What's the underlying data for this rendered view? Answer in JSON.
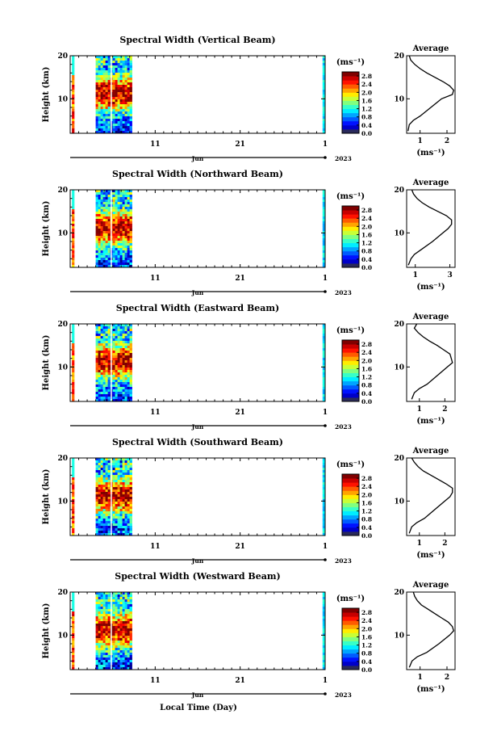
{
  "chart_data": {
    "type": "heatmap",
    "x_axis_label": "Local Time (Day)",
    "month_label": "Jun",
    "year_label": "2023",
    "x_ticks": [
      "11",
      "21",
      "1"
    ],
    "y_label": "Height (km)",
    "y_ticks": [
      "20",
      "10"
    ],
    "ylim_km": [
      2,
      20
    ],
    "time_range_days": [
      1,
      31
    ],
    "data_block_days": [
      4.0,
      8.2
    ],
    "edge_strips_days": [
      [
        1.2,
        1.5
      ],
      [
        30.7,
        31.0
      ]
    ],
    "colorbar": {
      "unit": "(ms⁻¹)",
      "ticks": [
        "0.0",
        "0.4",
        "0.8",
        "1.2",
        "1.6",
        "2.0",
        "2.4",
        "2.8"
      ],
      "range": [
        0.0,
        3.0
      ]
    },
    "panels": [
      {
        "title": "Spectral Width (Vertical Beam)",
        "beam": "vertical",
        "average": {
          "title": "Average",
          "xlabel": "(ms⁻¹)",
          "x_ticks": [
            "1",
            "2"
          ],
          "xlim": [
            0.5,
            2.3
          ],
          "heights_km": [
            2.5,
            4,
            5,
            6,
            8,
            10,
            11,
            12,
            13,
            14,
            15,
            16,
            17,
            18,
            19,
            20
          ],
          "values": [
            0.55,
            0.6,
            0.75,
            1.0,
            1.4,
            1.8,
            2.2,
            2.25,
            2.1,
            1.85,
            1.55,
            1.25,
            1.0,
            0.8,
            0.65,
            0.6
          ]
        }
      },
      {
        "title": "Spectral Width (Northward Beam)",
        "beam": "northward",
        "average": {
          "title": "Average",
          "xlabel": "(ms⁻¹)",
          "x_ticks": [
            "1",
            "3"
          ],
          "xlim": [
            0.5,
            3.3
          ],
          "heights_km": [
            2.5,
            4,
            5,
            6,
            8,
            10,
            11,
            12,
            13,
            14,
            15,
            16,
            17,
            18,
            19,
            20
          ],
          "values": [
            0.6,
            0.75,
            0.95,
            1.3,
            2.0,
            2.6,
            2.9,
            3.1,
            3.1,
            2.8,
            2.3,
            1.8,
            1.4,
            1.1,
            0.9,
            0.8
          ]
        }
      },
      {
        "title": "Spectral Width (Eastward Beam)",
        "beam": "eastward",
        "average": {
          "title": "Average",
          "xlabel": "(ms⁻¹)",
          "x_ticks": [
            "1",
            "2"
          ],
          "xlim": [
            0.5,
            2.4
          ],
          "heights_km": [
            2.5,
            4,
            5,
            6,
            8,
            10,
            11,
            12,
            13,
            14,
            15,
            16,
            17,
            18,
            19,
            20
          ],
          "values": [
            0.7,
            0.8,
            1.0,
            1.3,
            1.7,
            2.1,
            2.3,
            2.25,
            2.2,
            1.95,
            1.7,
            1.4,
            1.15,
            0.95,
            0.8,
            0.9
          ]
        }
      },
      {
        "title": "Spectral Width (Southward Beam)",
        "beam": "southward",
        "average": {
          "title": "Average",
          "xlabel": "(ms⁻¹)",
          "x_ticks": [
            "1",
            "2"
          ],
          "xlim": [
            0.5,
            2.4
          ],
          "heights_km": [
            2.5,
            4,
            5,
            6,
            8,
            10,
            11,
            12,
            13,
            14,
            15,
            16,
            17,
            18,
            19,
            20
          ],
          "values": [
            0.6,
            0.7,
            0.9,
            1.2,
            1.6,
            2.0,
            2.2,
            2.3,
            2.3,
            2.05,
            1.75,
            1.45,
            1.15,
            0.95,
            0.8,
            0.7
          ]
        }
      },
      {
        "title": "Spectral Width (Westward Beam)",
        "beam": "westward",
        "average": {
          "title": "Average",
          "xlabel": "(ms⁻¹)",
          "x_ticks": [
            "1",
            "2"
          ],
          "xlim": [
            0.5,
            2.3
          ],
          "heights_km": [
            2.5,
            4,
            5,
            6,
            8,
            10,
            11,
            12,
            13,
            14,
            15,
            16,
            17,
            18,
            19,
            20
          ],
          "values": [
            0.6,
            0.7,
            0.9,
            1.25,
            1.7,
            2.1,
            2.25,
            2.2,
            2.05,
            1.8,
            1.55,
            1.3,
            1.05,
            0.9,
            0.8,
            0.75
          ]
        }
      }
    ]
  }
}
